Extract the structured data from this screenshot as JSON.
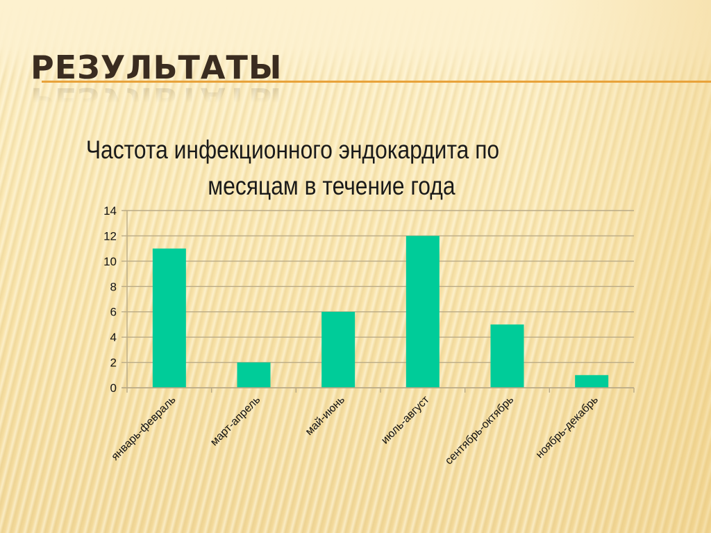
{
  "slide": {
    "title": "РЕЗУЛЬТАТЫ",
    "subtitle_line1": "Частота инфекционного эндокардита по",
    "subtitle_line2": "месяцам в течение года",
    "accent_color": "#e8a23a",
    "bar_color": "#00cc99"
  },
  "chart_data": {
    "type": "bar",
    "title": "Частота инфекционного эндокардита по месяцам в течение года",
    "xlabel": "",
    "ylabel": "",
    "categories": [
      "январь-февраль",
      "март-апрель",
      "май-июнь",
      "июль-август",
      "сентябрь-октябрь",
      "ноябрь-декабрь"
    ],
    "values": [
      11,
      2,
      6,
      12,
      5,
      1
    ],
    "ylim": [
      0,
      14
    ],
    "yticks": [
      0,
      2,
      4,
      6,
      8,
      10,
      12,
      14
    ],
    "grid": true,
    "legend": "none",
    "tick_label_rotation": -45
  }
}
